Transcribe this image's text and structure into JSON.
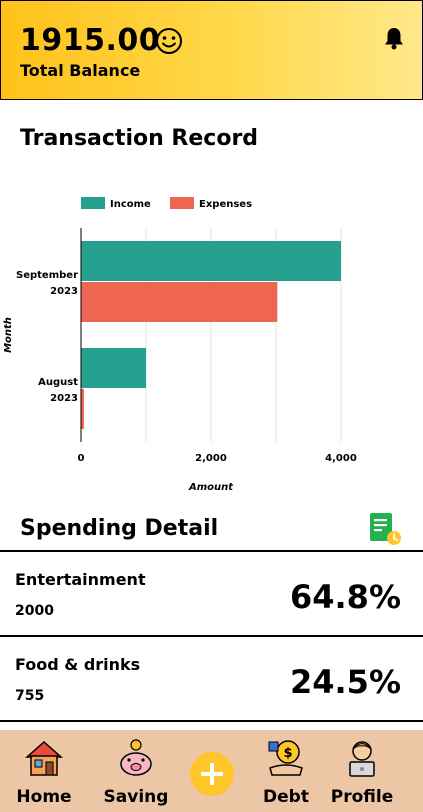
{
  "header": {
    "balance": "1915.00",
    "balance_label": "Total Balance"
  },
  "transaction": {
    "title": "Transaction Record"
  },
  "chart_data": {
    "type": "bar",
    "orientation": "horizontal",
    "categories": [
      "September 2023",
      "August 2023"
    ],
    "series": [
      {
        "name": "Income",
        "values": [
          4000,
          1000
        ],
        "color": "#26a08e"
      },
      {
        "name": "Expenses",
        "values": [
          3020,
          45
        ],
        "color": "#ee6552"
      }
    ],
    "xlabel": "Amount",
    "ylabel": "Month",
    "xlim": [
      0,
      4500
    ],
    "xticks": [
      "0",
      "2,000",
      "4,000"
    ],
    "legend": "top-left",
    "grid": true
  },
  "spending": {
    "title": "Spending Detail",
    "items": [
      {
        "name": "Entertainment",
        "amount": "2000",
        "percent": "64.8%"
      },
      {
        "name": "Food & drinks",
        "amount": "755",
        "percent": "24.5%"
      }
    ]
  },
  "nav": {
    "home": "Home",
    "saving": "Saving",
    "debt": "Debt",
    "profile": "Profile"
  },
  "icons": {
    "balance": "smiley-icon",
    "header_right": "bell-icon",
    "spending": "report-icon",
    "add": "plus-icon"
  },
  "colors": {
    "header_start": "#ffc21a",
    "header_end": "#ffe88a",
    "nav_bg": "#edc6a6",
    "income": "#26a08e",
    "expenses": "#ee6552",
    "add": "#ffc52a"
  }
}
